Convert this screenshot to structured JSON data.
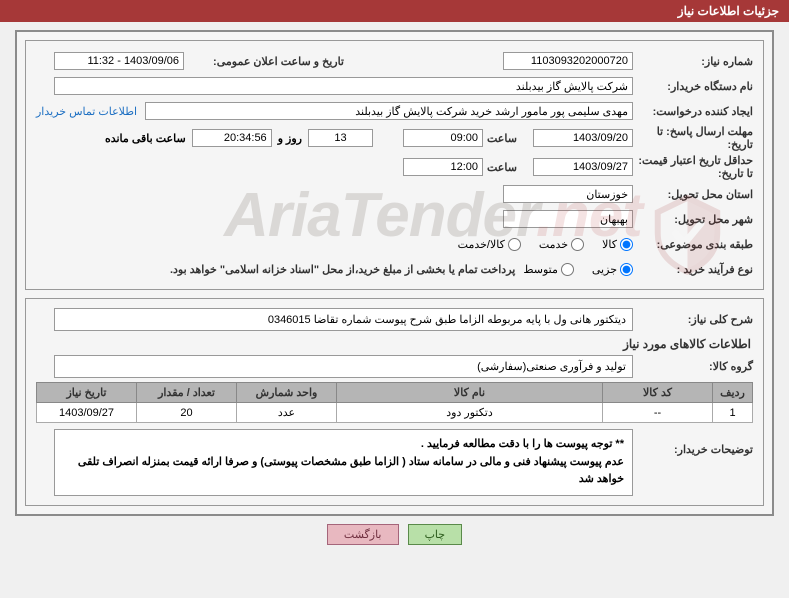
{
  "header_title": "جزئیات اطلاعات نیاز",
  "fields": {
    "need_number_lbl": "شماره نیاز:",
    "need_number": "1103093202000720",
    "announce_lbl": "تاریخ و ساعت اعلان عمومی:",
    "announce_val": "1403/09/06 - 11:32",
    "buyer_lbl": "نام دستگاه خریدار:",
    "buyer_val": "شرکت پالایش گاز بیدبلند",
    "creator_lbl": "ایجاد کننده درخواست:",
    "creator_val": "مهدی سلیمی پور مامور ارشد خرید شرکت پالایش گاز بیدبلند",
    "contact_link": "اطلاعات تماس خریدار",
    "deadline_lbl": "مهلت ارسال پاسخ: تا تاریخ:",
    "deadline_date": "1403/09/20",
    "time_lbl": "ساعت",
    "deadline_time": "09:00",
    "days": "13",
    "days_lbl": "روز و",
    "countdown": "20:34:56",
    "remain_lbl": "ساعت باقی مانده",
    "valid_lbl": "حداقل تاریخ اعتبار قیمت: تا تاریخ:",
    "valid_date": "1403/09/27",
    "valid_time": "12:00",
    "province_lbl": "استان محل تحویل:",
    "province_val": "خوزستان",
    "city_lbl": "شهر محل تحویل:",
    "city_val": "بهبهان",
    "category_lbl": "طبقه بندی موضوعی:",
    "cat_opts": {
      "goods": "کالا",
      "service": "خدمت",
      "both": "کالا/خدمت"
    },
    "purchase_lbl": "نوع فرآیند خرید :",
    "purchase_opts": {
      "partial": "جزیی",
      "medium": "متوسط"
    },
    "purchase_note": "پرداخت تمام یا بخشی از مبلغ خرید،از محل \"اسناد خزانه اسلامی\" خواهد بود.",
    "desc_lbl": "شرح کلی نیاز:",
    "desc_val": "دیتکتور هانی ول  با پایه مربوطه  الزاما طبق شرح پیوست شماره تقاضا 0346015",
    "info_title": "اطلاعات کالاهای مورد نیاز",
    "group_lbl": "گروه کالا:",
    "group_val": "تولید و فرآوری صنعتی(سفارشی)",
    "table": {
      "headers": [
        "ردیف",
        "کد کالا",
        "نام کالا",
        "واحد شمارش",
        "تعداد / مقدار",
        "تاریخ نیاز"
      ],
      "row": [
        "1",
        "--",
        "دتکتور دود",
        "عدد",
        "20",
        "1403/09/27"
      ]
    },
    "buyer_desc_lbl": "توضیحات خریدار:",
    "buyer_desc": "** توجه پیوست ها  را با دقت مطالعه فرمایید .\nعدم پیوست پیشنهاد فنی و مالی در سامانه ستاد ( الزاما طبق مشخصات پیوستی)  و صرفا ارائه قیمت بمنزله انصراف تلقی خواهد شد",
    "btn_print": "چاپ",
    "btn_back": "بازگشت",
    "watermark": "AriaTender"
  },
  "colors": {
    "header_bg": "#a63838",
    "border": "#8b8b8b",
    "th_bg": "#b5b5b5",
    "link": "#1b6ec2"
  }
}
